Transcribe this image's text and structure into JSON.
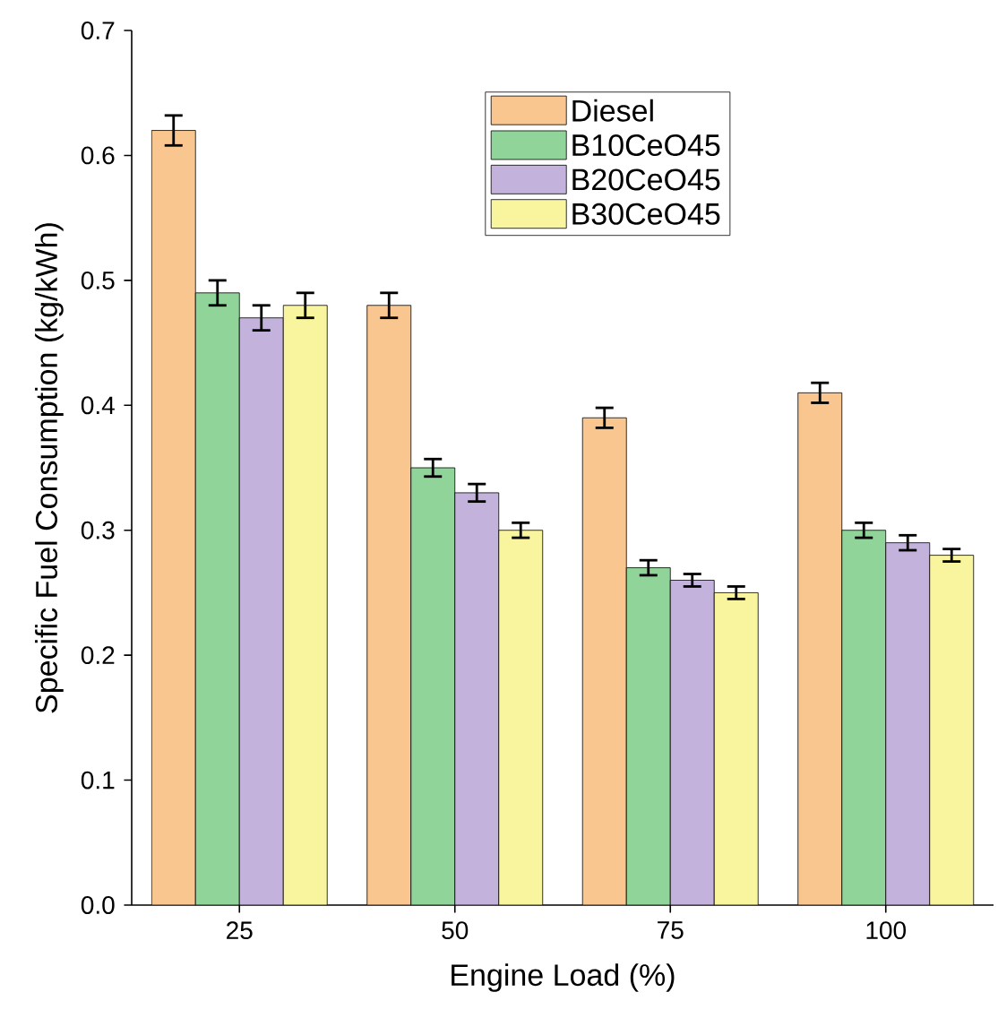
{
  "chart_data": {
    "type": "bar",
    "xlabel": "Engine Load (%)",
    "ylabel": "Specific Fuel Consumption (kg/kWh)",
    "categories": [
      "25",
      "50",
      "75",
      "100"
    ],
    "series": [
      {
        "name": "Diesel",
        "color": "#f9c68f",
        "values": [
          0.62,
          0.48,
          0.39,
          0.41
        ],
        "errors": [
          0.012,
          0.01,
          0.008,
          0.008
        ]
      },
      {
        "name": "B10CeO45",
        "color": "#90d49a",
        "values": [
          0.49,
          0.35,
          0.27,
          0.3
        ],
        "errors": [
          0.01,
          0.007,
          0.006,
          0.006
        ]
      },
      {
        "name": "B20CeO45",
        "color": "#c3b3dc",
        "values": [
          0.47,
          0.33,
          0.26,
          0.29
        ],
        "errors": [
          0.01,
          0.007,
          0.005,
          0.006
        ]
      },
      {
        "name": "B30CeO45",
        "color": "#f9f59e",
        "values": [
          0.48,
          0.3,
          0.25,
          0.28
        ],
        "errors": [
          0.01,
          0.006,
          0.005,
          0.005
        ]
      }
    ],
    "ylim": [
      0,
      0.7
    ],
    "yticks": [
      {
        "value": 0,
        "label": "0.0"
      },
      {
        "value": 0.1,
        "label": "0.1"
      },
      {
        "value": 0.2,
        "label": "0.2"
      },
      {
        "value": 0.3,
        "label": "0.3"
      },
      {
        "value": 0.4,
        "label": "0.4"
      },
      {
        "value": 0.5,
        "label": "0.5"
      },
      {
        "value": 0.6,
        "label": "0.6"
      },
      {
        "value": 0.7,
        "label": "0.7"
      }
    ],
    "grid": false,
    "legend": "top right"
  }
}
